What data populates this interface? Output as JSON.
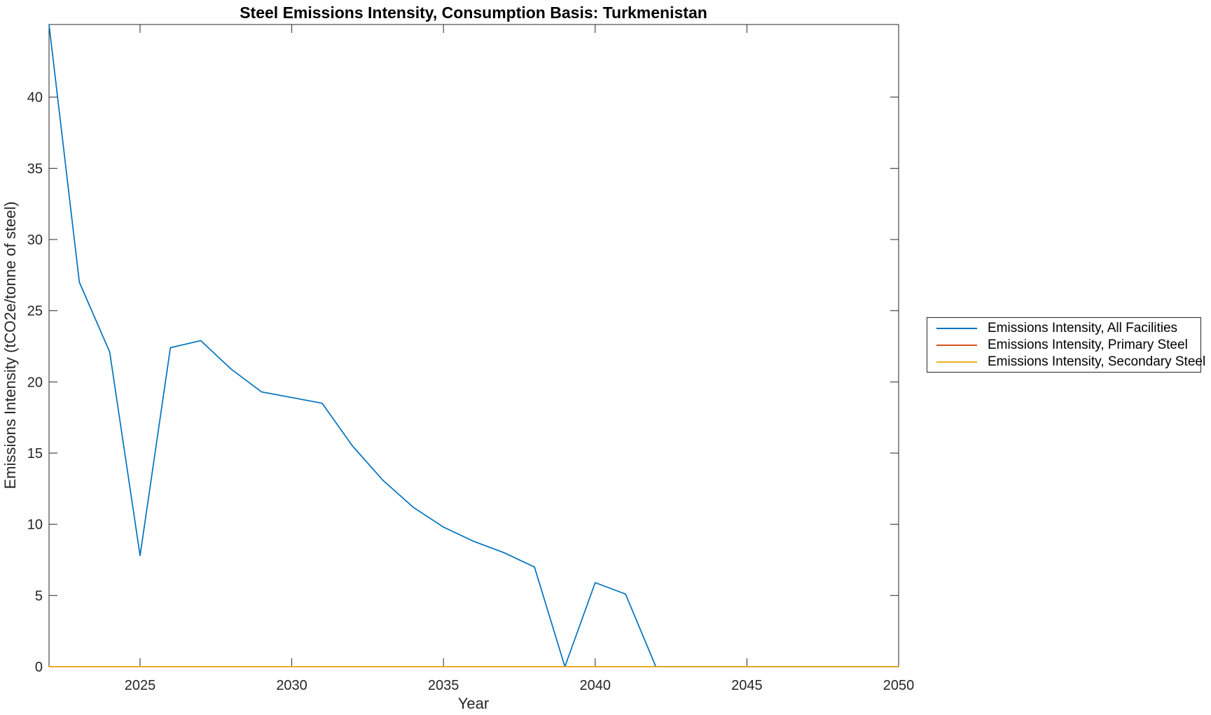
{
  "title": "Steel Emissions Intensity, Consumption Basis: Turkmenistan",
  "axes": {
    "xlabel": "Year",
    "ylabel": "Emissions Intensity (tCO2e/tonne of steel)",
    "xticks": [
      2025,
      2030,
      2035,
      2040,
      2045,
      2050
    ],
    "yticks": [
      0,
      5,
      10,
      15,
      20,
      25,
      30,
      35,
      40
    ],
    "axis_color": "#262626",
    "text_color": "#262626",
    "title_color": "#000000"
  },
  "legend": {
    "entries": [
      {
        "label": "Emissions Intensity, All Facilities",
        "color": "#0072BD"
      },
      {
        "label": "Emissions Intensity, Primary Steel",
        "color": "#D95319"
      },
      {
        "label": "Emissions Intensity, Secondary Steel",
        "color": "#EDB120"
      }
    ]
  },
  "chart_data": {
    "type": "line",
    "title": "Steel Emissions Intensity, Consumption Basis: Turkmenistan",
    "xlabel": "Year",
    "ylabel": "Emissions Intensity (tCO2e/tonne of steel)",
    "xlim": [
      2022,
      2050
    ],
    "ylim": [
      0,
      45.1
    ],
    "grid": false,
    "legend_position": "right-outside",
    "x": [
      2022,
      2023,
      2024,
      2025,
      2026,
      2027,
      2028,
      2029,
      2030,
      2031,
      2032,
      2033,
      2034,
      2035,
      2036,
      2037,
      2038,
      2039,
      2040,
      2041,
      2042,
      2043,
      2044,
      2045,
      2046,
      2047,
      2048,
      2049,
      2050
    ],
    "series": [
      {
        "name": "Emissions Intensity, All Facilities",
        "color": "#0072BD",
        "values": [
          45.1,
          27.0,
          22.1,
          7.8,
          22.4,
          22.9,
          20.9,
          19.3,
          18.9,
          18.5,
          15.5,
          13.1,
          11.2,
          9.8,
          8.8,
          8.0,
          7.0,
          0,
          5.9,
          5.1,
          0,
          0,
          0,
          0,
          0,
          0,
          0,
          0,
          0
        ]
      },
      {
        "name": "Emissions Intensity, Primary Steel",
        "color": "#D95319",
        "values": [
          0,
          0,
          0,
          0,
          0,
          0,
          0,
          0,
          0,
          0,
          0,
          0,
          0,
          0,
          0,
          0,
          0,
          0,
          0,
          0,
          0,
          0,
          0,
          0,
          0,
          0,
          0,
          0,
          0
        ]
      },
      {
        "name": "Emissions Intensity, Secondary Steel",
        "color": "#EDB120",
        "values": [
          0,
          0,
          0,
          0,
          0,
          0,
          0,
          0,
          0,
          0,
          0,
          0,
          0,
          0,
          0,
          0,
          0,
          0,
          0,
          0,
          0,
          0,
          0,
          0,
          0,
          0,
          0,
          0,
          0
        ]
      }
    ]
  }
}
